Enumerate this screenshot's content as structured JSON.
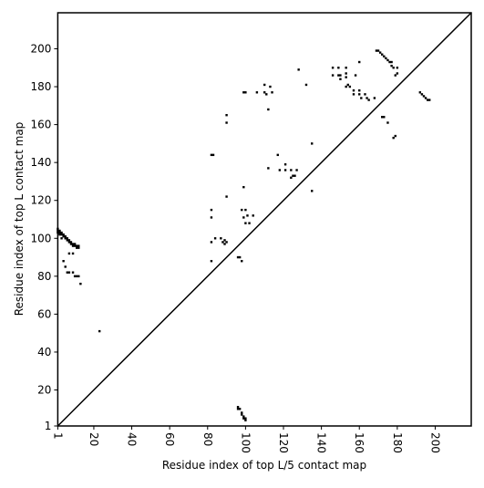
{
  "chart_data": {
    "type": "scatter",
    "xlabel": "Residue index of top L/5 contact map",
    "ylabel": "Residue index of top L contact map",
    "xlim": [
      1,
      219
    ],
    "ylim": [
      1,
      219
    ],
    "xticks": [
      1,
      20,
      40,
      60,
      80,
      100,
      120,
      140,
      160,
      180,
      200
    ],
    "yticks": [
      1,
      20,
      40,
      60,
      80,
      100,
      120,
      140,
      160,
      180,
      200
    ],
    "series": [
      {
        "color": "#000000",
        "x": [
          1,
          1,
          1,
          2,
          2,
          2,
          3,
          3,
          3,
          4,
          4,
          5,
          5,
          6,
          6,
          7,
          7,
          8,
          8,
          9,
          9,
          10,
          10,
          11,
          11,
          12,
          12,
          4,
          5,
          6,
          7,
          9,
          10,
          11,
          12,
          13,
          7,
          9,
          23,
          82,
          83,
          82,
          82,
          82,
          84,
          82,
          87,
          88,
          89,
          90,
          89,
          96,
          97,
          98,
          90,
          99,
          98,
          100,
          101,
          99,
          100,
          102,
          104,
          90,
          90,
          99,
          100,
          106,
          110,
          110,
          111,
          113,
          114,
          112,
          112,
          117,
          118,
          121,
          121,
          124,
          125,
          124,
          127,
          126,
          128,
          132,
          135,
          135,
          146,
          149,
          153,
          146,
          149,
          150,
          150,
          153,
          153,
          154,
          153,
          155,
          158,
          157,
          157,
          160,
          160,
          160,
          161,
          163,
          164,
          165,
          168,
          169,
          170,
          171,
          172,
          173,
          174,
          175,
          176,
          177,
          177,
          178,
          180,
          179,
          180,
          172,
          173,
          175,
          178,
          179,
          192,
          193,
          194,
          195,
          196,
          197
        ],
        "y": [
          105,
          104,
          103,
          104,
          103,
          102,
          103,
          102,
          100,
          102,
          101,
          101,
          100,
          100,
          99,
          99,
          98,
          98,
          97,
          97,
          96,
          97,
          96,
          96,
          95,
          96,
          95,
          88,
          85,
          82,
          82,
          82,
          80,
          80,
          80,
          76,
          92,
          92,
          51,
          144,
          144,
          115,
          111,
          98,
          100,
          88,
          100,
          98,
          97,
          98,
          99,
          90,
          90,
          88,
          122,
          127,
          115,
          115,
          112,
          111,
          108,
          108,
          112,
          165,
          161,
          177,
          177,
          177,
          181,
          177,
          176,
          180,
          177,
          168,
          137,
          144,
          136,
          139,
          136,
          136,
          133,
          132,
          136,
          133,
          189,
          181,
          150,
          125,
          190,
          190,
          190,
          186,
          186,
          186,
          184,
          187,
          185,
          181,
          180,
          180,
          186,
          178,
          176,
          193,
          178,
          176,
          174,
          176,
          174,
          173,
          174,
          199,
          199,
          198,
          197,
          196,
          195,
          194,
          193,
          193,
          191,
          190,
          190,
          186,
          187,
          164,
          164,
          161,
          153,
          154,
          177,
          176,
          175,
          174,
          173,
          173
        ]
      },
      {
        "color": "#000000",
        "x": [
          96,
          97,
          98,
          99,
          100,
          100,
          96,
          98,
          99
        ],
        "y": [
          11,
          10,
          8,
          6,
          5,
          4,
          10,
          7,
          5
        ]
      }
    ]
  }
}
